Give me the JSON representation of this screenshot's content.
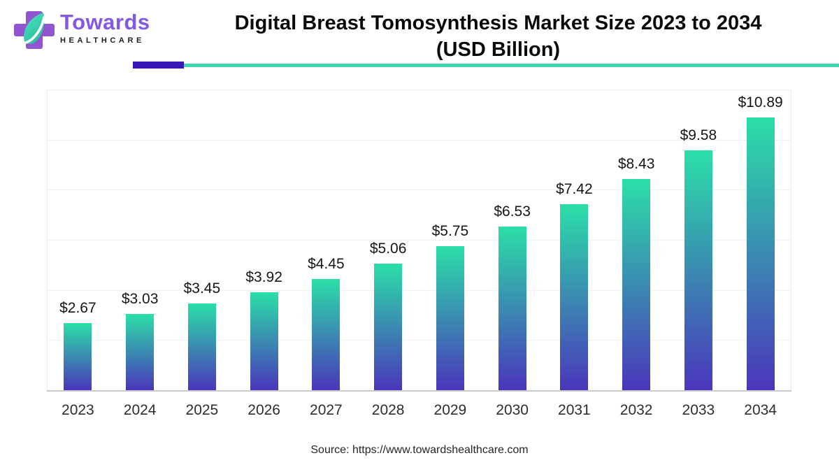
{
  "logo": {
    "brand": "Towards",
    "subtitle": "HEALTHCARE"
  },
  "header": {
    "title_line1": "Digital Breast Tomosynthesis Market Size 2023 to 2034",
    "title_line2": "(USD Billion)"
  },
  "chart_data": {
    "type": "bar",
    "title": "Digital Breast Tomosynthesis Market Size 2023 to 2034 (USD Billion)",
    "unit": "USD Billion",
    "categories": [
      "2023",
      "2024",
      "2025",
      "2026",
      "2027",
      "2028",
      "2029",
      "2030",
      "2031",
      "2032",
      "2033",
      "2034"
    ],
    "values": [
      2.67,
      3.03,
      3.45,
      3.92,
      4.45,
      5.06,
      5.75,
      6.53,
      7.42,
      8.43,
      9.58,
      10.89
    ],
    "labels": [
      "$2.67",
      "$3.03",
      "$3.45",
      "$3.92",
      "$4.45",
      "$5.06",
      "$5.75",
      "$6.53",
      "$7.42",
      "$8.43",
      "$9.58",
      "$10.89"
    ],
    "xlabel": "",
    "ylabel": "",
    "ylim": [
      0,
      12
    ],
    "gridline_step": 2,
    "grid": "horizontal",
    "legend": "none"
  },
  "footer": {
    "source": "Source: https://www.towardshealthcare.com"
  },
  "colors": {
    "bar_gradient_top": "#2BDFA8",
    "bar_gradient_bottom": "#4A36BB",
    "accent_purple": "#3A16B8",
    "accent_teal": "#3DD6AE",
    "logo_cross_purple": "#9055CF",
    "logo_leaf_teal_light": "#4FE6C2",
    "logo_leaf_teal_dark": "#2DBD9D",
    "brand_text_purple": "#8358E2",
    "title_text": "#0A0A0A"
  }
}
